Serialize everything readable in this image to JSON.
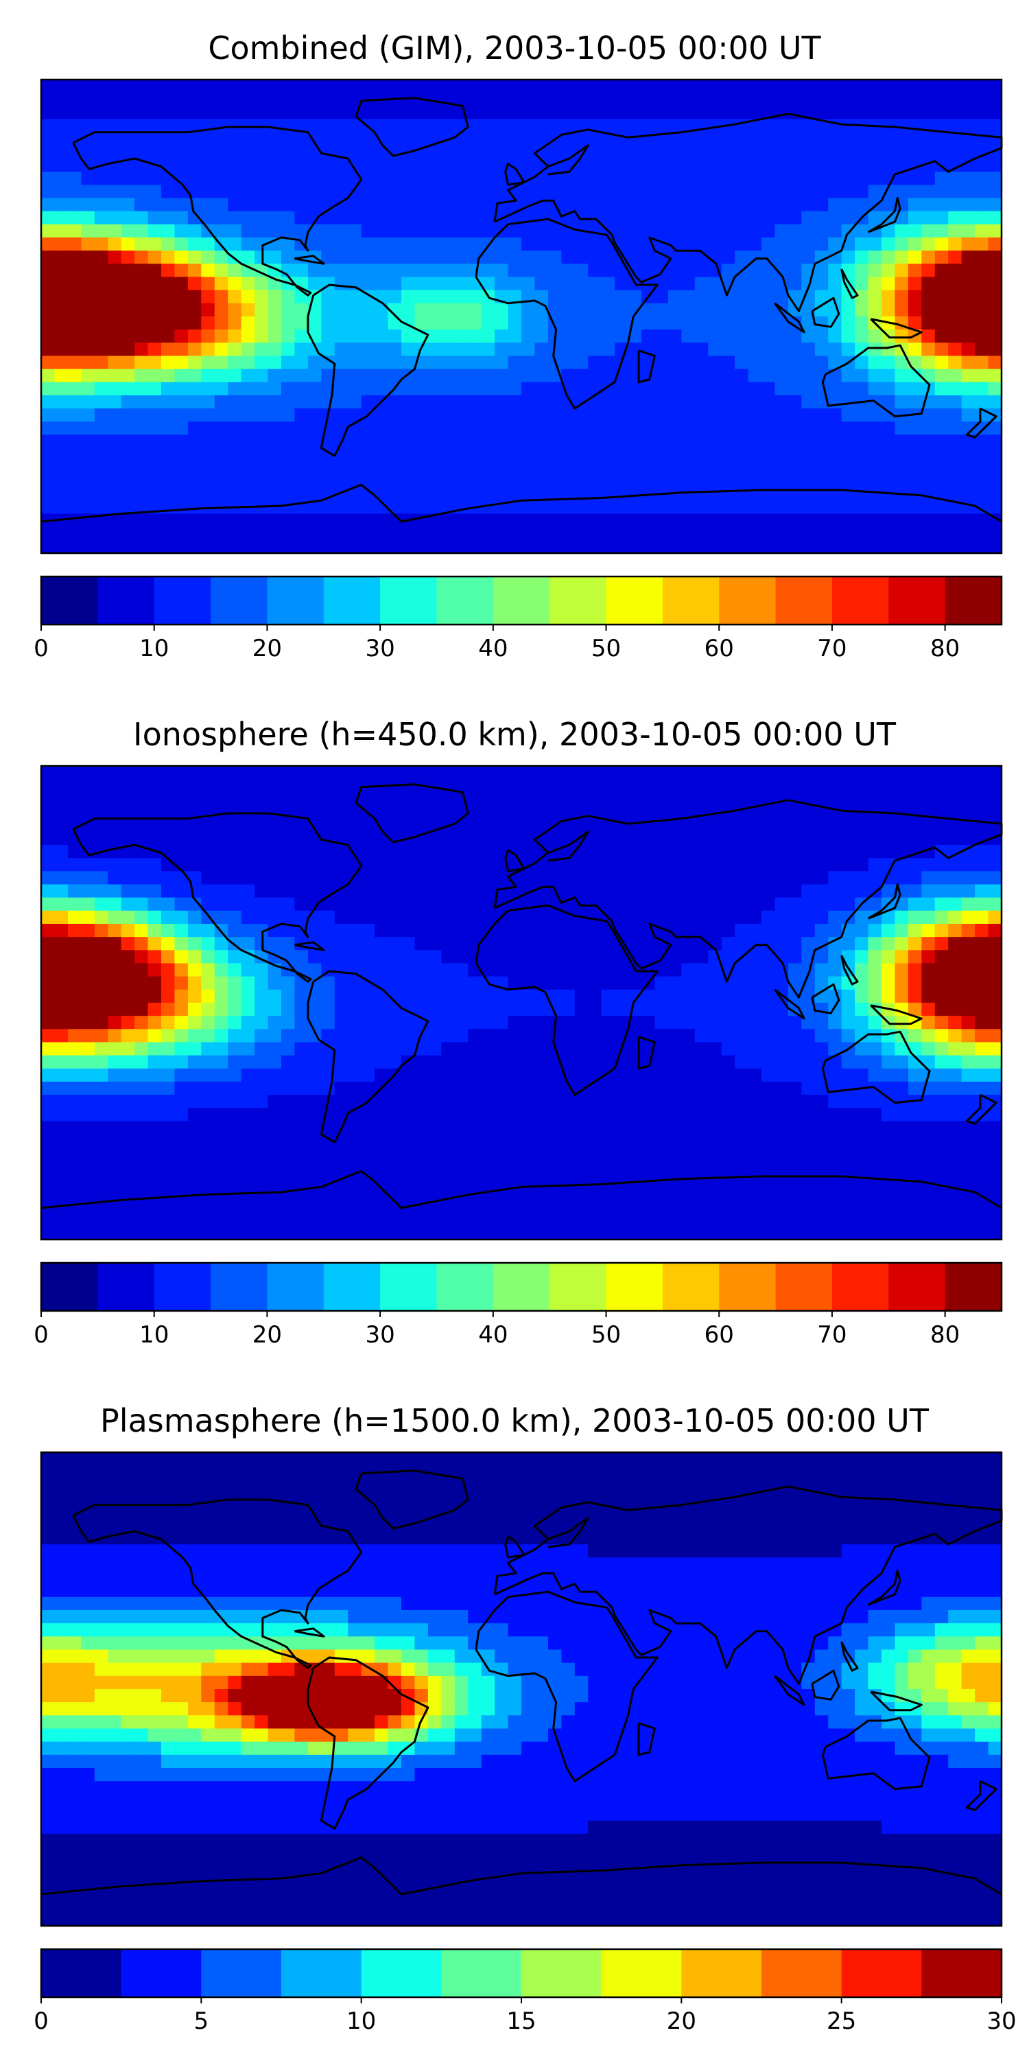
{
  "panels": [
    {
      "title": "Combined (GIM), 2003-10-05 00:00 UT",
      "colorbar": {
        "min": 0,
        "max": 85,
        "step": 5,
        "ticks": [
          "0",
          "10",
          "20",
          "30",
          "40",
          "50",
          "60",
          "70",
          "80"
        ],
        "tick_values": [
          0,
          10,
          20,
          30,
          40,
          50,
          60,
          70,
          80
        ]
      },
      "field_peaks": [
        {
          "lon": -168,
          "lat": 8,
          "value": 75,
          "width_lon": 30,
          "width_lat": 14
        },
        {
          "lon": -140,
          "lat": 0,
          "value": 70,
          "width_lon": 40,
          "width_lat": 16
        },
        {
          "lon": 170,
          "lat": 5,
          "value": 62,
          "width_lon": 30,
          "width_lat": 20
        },
        {
          "lon": -25,
          "lat": 0,
          "value": 38,
          "width_lon": 20,
          "width_lat": 12
        }
      ],
      "background_value": 15
    },
    {
      "title": "Ionosphere  (h=450.0 km), 2003-10-05 00:00 UT",
      "colorbar": {
        "min": 0,
        "max": 85,
        "step": 5,
        "ticks": [
          "0",
          "10",
          "20",
          "30",
          "40",
          "50",
          "60",
          "70",
          "80"
        ],
        "tick_values": [
          0,
          10,
          20,
          30,
          40,
          50,
          60,
          70,
          80
        ]
      },
      "field_peaks": [
        {
          "lon": -170,
          "lat": 15,
          "value": 62,
          "width_lon": 30,
          "width_lat": 14
        },
        {
          "lon": -155,
          "lat": 0,
          "value": 58,
          "width_lon": 40,
          "width_lat": 16
        },
        {
          "lon": 170,
          "lat": 8,
          "value": 52,
          "width_lon": 30,
          "width_lat": 20
        }
      ],
      "background_value": 10
    },
    {
      "title": "Plasmasphere (h=1500.0 km), 2003-10-05 00:00 UT",
      "colorbar": {
        "min": 0,
        "max": 30,
        "step": 2.5,
        "ticks": [
          "0",
          "5",
          "10",
          "15",
          "20",
          "25",
          "30"
        ],
        "tick_values": [
          0,
          5,
          10,
          15,
          20,
          25,
          30
        ]
      },
      "field_peaks": [
        {
          "lon": -70,
          "lat": -5,
          "value": 27,
          "width_lon": 25,
          "width_lat": 10
        },
        {
          "lon": -100,
          "lat": 0,
          "value": 20,
          "width_lon": 60,
          "width_lat": 18
        },
        {
          "lon": 170,
          "lat": 5,
          "value": 16,
          "width_lon": 30,
          "width_lat": 14
        }
      ],
      "background_value": 3
    }
  ],
  "colors": {
    "jet_85": [
      "#00008f",
      "#0000d9",
      "#0020ff",
      "#0058ff",
      "#0090ff",
      "#00c8ff",
      "#18ffe0",
      "#50ffa8",
      "#88ff70",
      "#c0ff38",
      "#f8ff00",
      "#ffc800",
      "#ff9000",
      "#ff5800",
      "#ff2000",
      "#d90000",
      "#900000"
    ],
    "jet_30": [
      "#00009a",
      "#0010ff",
      "#0060ff",
      "#00b0ff",
      "#10ffe8",
      "#5cff9c",
      "#a8ff50",
      "#f0ff08",
      "#ffb800",
      "#ff6800",
      "#ff1800",
      "#a80000"
    ]
  }
}
